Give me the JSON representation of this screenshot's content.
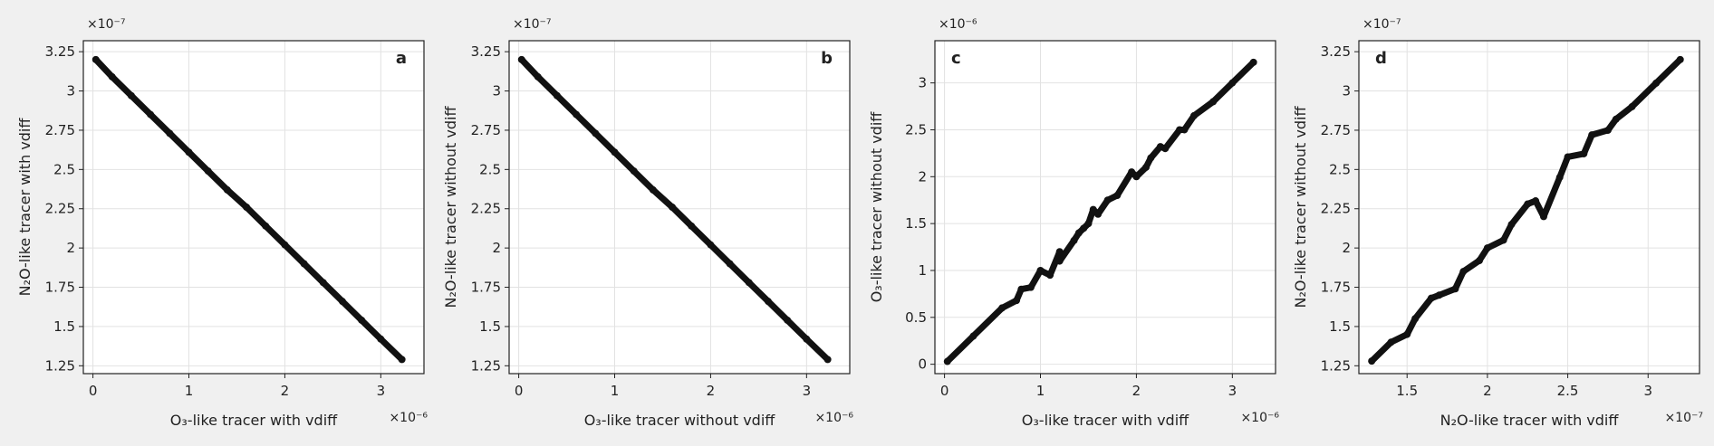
{
  "figure": {
    "background_color": "#f0f0f0",
    "plot_background_color": "#ffffff",
    "marker_color": "#111111"
  },
  "chart_data": [
    {
      "type": "scatter",
      "panel_label": "a",
      "xlabel": "O₃-like tracer with vdiff",
      "ylabel": "N₂O-like tracer with vdiff",
      "x_multiplier": "×10⁻⁶",
      "y_multiplier": "×10⁻⁷",
      "xlim": [
        -0.1,
        3.45
      ],
      "ylim": [
        1.2,
        3.32
      ],
      "xticks": [
        0,
        1,
        2,
        3
      ],
      "xtick_labels": [
        "0",
        "1",
        "2",
        "3"
      ],
      "yticks": [
        1.25,
        1.5,
        1.75,
        2,
        2.25,
        2.5,
        2.75,
        3,
        3.25
      ],
      "ytick_labels": [
        "1.25",
        "1.5",
        "1.75",
        "2",
        "2.25",
        "2.5",
        "2.75",
        "3",
        "3.25"
      ],
      "grid": true,
      "x": [
        0.03,
        0.2,
        0.4,
        0.6,
        0.8,
        1.0,
        1.2,
        1.4,
        1.6,
        1.8,
        2.0,
        2.2,
        2.4,
        2.6,
        2.8,
        3.0,
        3.22
      ],
      "y": [
        3.2,
        3.09,
        2.97,
        2.85,
        2.73,
        2.61,
        2.49,
        2.37,
        2.26,
        2.14,
        2.02,
        1.9,
        1.78,
        1.66,
        1.54,
        1.42,
        1.29
      ]
    },
    {
      "type": "scatter",
      "panel_label": "b",
      "xlabel": "O₃-like tracer without vdiff",
      "ylabel": "N₂O-like tracer without vdiff",
      "x_multiplier": "×10⁻⁶",
      "y_multiplier": "×10⁻⁷",
      "xlim": [
        -0.1,
        3.45
      ],
      "ylim": [
        1.2,
        3.32
      ],
      "xticks": [
        0,
        1,
        2,
        3
      ],
      "xtick_labels": [
        "0",
        "1",
        "2",
        "3"
      ],
      "yticks": [
        1.25,
        1.5,
        1.75,
        2,
        2.25,
        2.5,
        2.75,
        3,
        3.25
      ],
      "ytick_labels": [
        "1.25",
        "1.5",
        "1.75",
        "2",
        "2.25",
        "2.5",
        "2.75",
        "3",
        "3.25"
      ],
      "grid": true,
      "x": [
        0.03,
        0.2,
        0.4,
        0.6,
        0.8,
        1.0,
        1.2,
        1.4,
        1.6,
        1.8,
        2.0,
        2.2,
        2.4,
        2.6,
        2.8,
        3.0,
        3.22
      ],
      "y": [
        3.2,
        3.09,
        2.97,
        2.85,
        2.73,
        2.61,
        2.49,
        2.37,
        2.26,
        2.14,
        2.02,
        1.9,
        1.78,
        1.66,
        1.54,
        1.42,
        1.29
      ]
    },
    {
      "type": "scatter",
      "panel_label": "c",
      "xlabel": "O₃-like tracer with vdiff",
      "ylabel": "O₃-like tracer without vdiff",
      "x_multiplier": "×10⁻⁶",
      "y_multiplier": "×10⁻⁶",
      "xlim": [
        -0.1,
        3.45
      ],
      "ylim": [
        -0.1,
        3.45
      ],
      "xticks": [
        0,
        1,
        2,
        3
      ],
      "xtick_labels": [
        "0",
        "1",
        "2",
        "3"
      ],
      "yticks": [
        0,
        0.5,
        1,
        1.5,
        2,
        2.5,
        3
      ],
      "ytick_labels": [
        "0",
        "0.5",
        "1",
        "1.5",
        "2",
        "2.5",
        "3"
      ],
      "grid": true,
      "x": [
        0.03,
        0.3,
        0.6,
        0.8,
        1.0,
        1.2,
        1.4,
        1.5,
        1.6,
        1.8,
        2.0,
        2.1,
        2.3,
        2.5,
        2.8,
        3.0,
        3.22,
        0.75,
        0.9,
        1.1,
        1.2,
        1.35,
        1.45,
        1.55,
        1.7,
        1.95,
        2.15,
        2.25,
        2.45,
        2.6
      ],
      "y": [
        0.03,
        0.3,
        0.6,
        0.8,
        1.0,
        1.2,
        1.4,
        1.5,
        1.6,
        1.8,
        2.0,
        2.1,
        2.3,
        2.5,
        2.8,
        3.0,
        3.22,
        0.68,
        0.82,
        0.95,
        1.1,
        1.32,
        1.45,
        1.65,
        1.75,
        2.05,
        2.2,
        2.32,
        2.5,
        2.65
      ]
    },
    {
      "type": "scatter",
      "panel_label": "d",
      "xlabel": "N₂O-like tracer with vdiff",
      "ylabel": "N₂O-like tracer without vdiff",
      "x_multiplier": "×10⁻⁷",
      "y_multiplier": "×10⁻⁷",
      "xlim": [
        1.2,
        3.32
      ],
      "ylim": [
        1.2,
        3.32
      ],
      "xticks": [
        1.5,
        2,
        2.5,
        3
      ],
      "xtick_labels": [
        "1.5",
        "2",
        "2.5",
        "3"
      ],
      "yticks": [
        1.25,
        1.5,
        1.75,
        2,
        2.25,
        2.5,
        2.75,
        3,
        3.25
      ],
      "ytick_labels": [
        "1.25",
        "1.5",
        "1.75",
        "2",
        "2.25",
        "2.5",
        "2.75",
        "3",
        "3.25"
      ],
      "grid": true,
      "x": [
        1.28,
        1.4,
        1.55,
        1.7,
        1.85,
        2.0,
        2.15,
        2.3,
        2.45,
        2.6,
        2.75,
        2.9,
        3.05,
        3.2,
        1.5,
        1.65,
        1.8,
        1.95,
        2.1,
        2.25,
        2.35,
        2.5,
        2.65,
        2.8
      ],
      "y": [
        1.28,
        1.4,
        1.55,
        1.7,
        1.85,
        2.0,
        2.15,
        2.3,
        2.45,
        2.6,
        2.75,
        2.9,
        3.05,
        3.2,
        1.45,
        1.68,
        1.74,
        1.92,
        2.05,
        2.28,
        2.2,
        2.58,
        2.72,
        2.82
      ]
    }
  ]
}
